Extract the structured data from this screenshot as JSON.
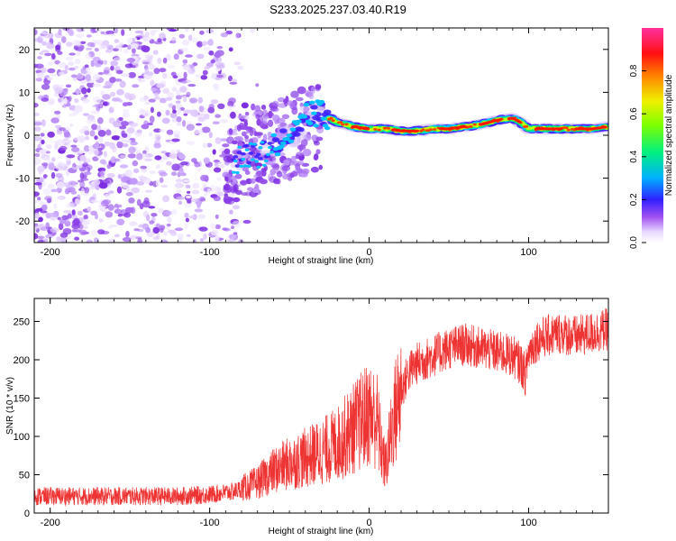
{
  "title": "S233.2025.237.03.40.R19",
  "chart_data": [
    {
      "type": "heatmap",
      "xlabel": "Height of straight line (km)",
      "ylabel": "Frequency (Hz)",
      "xlim": [
        -210,
        150
      ],
      "ylim": [
        -25,
        25
      ],
      "xticks": [
        -200,
        -100,
        0,
        100
      ],
      "yticks": [
        -20,
        -10,
        0,
        10,
        20
      ],
      "colorbar": {
        "label": "Normalized spectral amplitude",
        "range": [
          0,
          1
        ],
        "ticks": [
          0.0,
          0.2,
          0.4,
          0.6,
          0.8
        ],
        "tick_labels": [
          "0.0",
          "0.2",
          "0.4",
          "0.6",
          "0.8"
        ]
      },
      "noise_region": {
        "x": [
          -210,
          -80
        ],
        "y": [
          -25,
          25
        ]
      },
      "signal_track": {
        "x": [
          -85,
          -75,
          -65,
          -55,
          -45,
          -38,
          -30,
          -20,
          -10,
          0,
          10,
          20,
          30,
          40,
          50,
          60,
          70,
          80,
          90,
          95,
          100,
          110,
          120,
          130,
          140,
          150
        ],
        "y": [
          -6,
          -5,
          -4,
          -2,
          1,
          5,
          5,
          3,
          2,
          1.5,
          1.5,
          1,
          1,
          1.5,
          1.5,
          2,
          2.5,
          3.5,
          4,
          3,
          1.5,
          1.5,
          1.5,
          1.5,
          1.5,
          2
        ]
      }
    },
    {
      "type": "line",
      "xlabel": "Height of straight line (km)",
      "ylabel": "SNR (10 * v/v)",
      "xlim": [
        -210,
        150
      ],
      "ylim": [
        0,
        280
      ],
      "xticks": [
        -200,
        -100,
        0,
        100
      ],
      "yticks": [
        0,
        50,
        100,
        150,
        200,
        250
      ],
      "color": "#ee3333",
      "series": [
        {
          "name": "SNR",
          "x": [
            -210,
            -180,
            -150,
            -120,
            -100,
            -85,
            -70,
            -60,
            -50,
            -40,
            -30,
            -20,
            -10,
            0,
            5,
            8,
            10,
            12,
            15,
            20,
            25,
            30,
            40,
            50,
            60,
            70,
            80,
            90,
            95,
            98,
            100,
            105,
            110,
            120,
            130,
            140,
            150
          ],
          "y": [
            22,
            22,
            22,
            22,
            24,
            28,
            40,
            55,
            65,
            72,
            80,
            90,
            110,
            130,
            120,
            80,
            60,
            80,
            120,
            160,
            185,
            195,
            205,
            215,
            220,
            215,
            210,
            205,
            195,
            180,
            210,
            225,
            230,
            235,
            230,
            235,
            240
          ]
        }
      ]
    }
  ]
}
